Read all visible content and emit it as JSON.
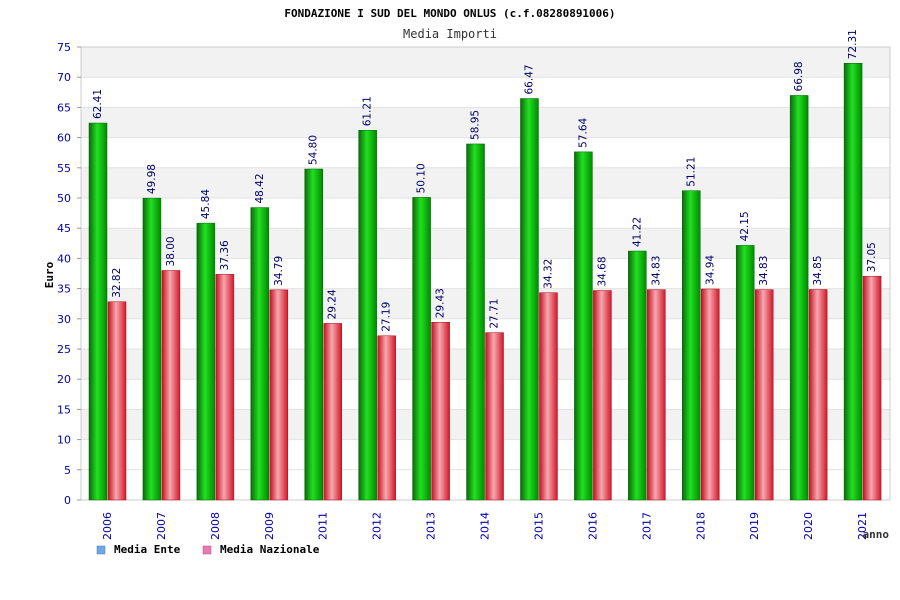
{
  "chart_data": {
    "type": "bar",
    "title": "FONDAZIONE I SUD DEL MONDO ONLUS (c.f.08280891006)",
    "subtitle": "Media Importi",
    "xlabel": "anno",
    "ylabel": "Euro",
    "ylim": [
      0,
      75
    ],
    "yticks": [
      "0",
      "5",
      "10",
      "15",
      "20",
      "25",
      "30",
      "35",
      "40",
      "45",
      "50",
      "55",
      "60",
      "65",
      "70",
      "75"
    ],
    "categories": [
      "2006",
      "2007",
      "2008",
      "2009",
      "2011",
      "2012",
      "2013",
      "2014",
      "2015",
      "2016",
      "2017",
      "2018",
      "2019",
      "2020",
      "2021"
    ],
    "series": [
      {
        "name": "Media Ente",
        "color": "#00b800",
        "values": [
          62.41,
          49.98,
          45.84,
          48.42,
          54.8,
          61.21,
          50.1,
          58.95,
          66.47,
          57.64,
          41.22,
          51.21,
          42.15,
          66.98,
          72.31
        ],
        "labels": [
          "62.41",
          "49.98",
          "45.84",
          "48.42",
          "54.80",
          "61.21",
          "50.10",
          "58.95",
          "66.47",
          "57.64",
          "41.22",
          "51.21",
          "42.15",
          "66.98",
          "72.31"
        ]
      },
      {
        "name": "Media Nazionale",
        "color": "#e8202c",
        "values": [
          32.82,
          38.0,
          37.36,
          34.79,
          29.24,
          27.19,
          29.43,
          27.71,
          34.32,
          34.68,
          34.83,
          34.94,
          34.83,
          34.85,
          37.05
        ],
        "labels": [
          "32.82",
          "38.00",
          "37.36",
          "34.79",
          "29.24",
          "27.19",
          "29.43",
          "27.71",
          "34.32",
          "34.68",
          "34.83",
          "34.94",
          "34.83",
          "34.85",
          "37.05"
        ]
      }
    ],
    "legend": {
      "placement": "bottom-left",
      "items": [
        {
          "label": "Media Ente",
          "color": "#6fa8e8"
        },
        {
          "label": "Media Nazionale",
          "color": "#e87ab0"
        }
      ]
    },
    "grid": true,
    "colors": {
      "band": "#f2f2f2",
      "axis_text": "#0000aa",
      "title_text": "#000000",
      "subtitle_text": "#333333"
    }
  }
}
